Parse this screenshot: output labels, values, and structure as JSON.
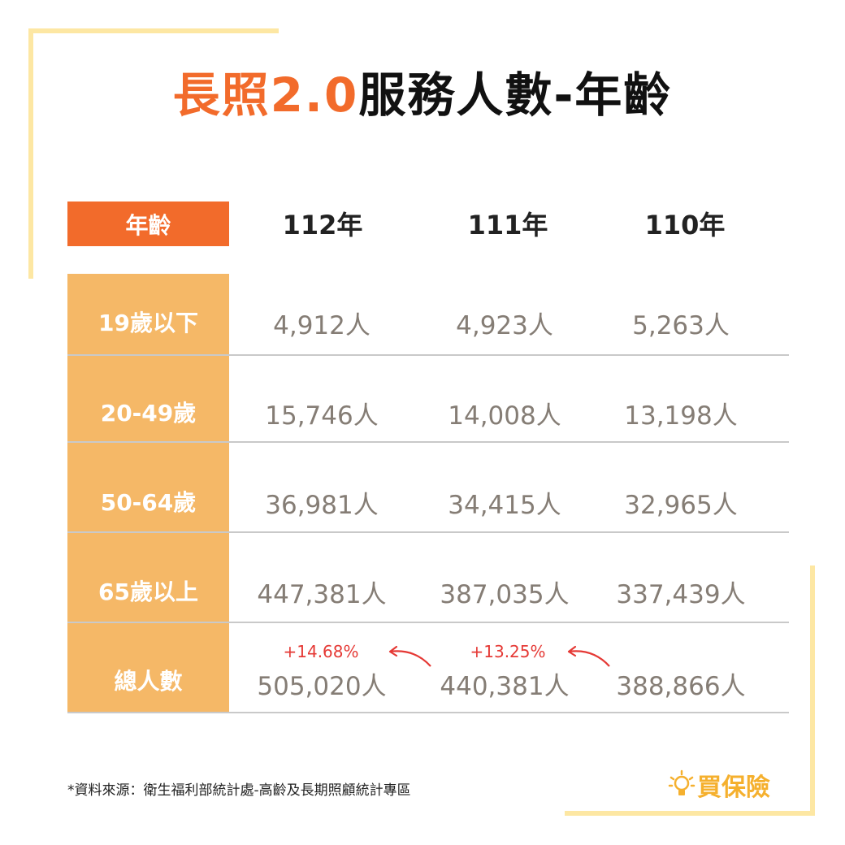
{
  "title": {
    "accent": "長照2.0",
    "main": "服務人數-年齡"
  },
  "table": {
    "age_header": "年齡",
    "years": [
      "112年",
      "111年",
      "110年"
    ],
    "rows": [
      {
        "label": "19歲以下",
        "values": [
          "4,912人",
          "4,923人",
          "5,263人"
        ]
      },
      {
        "label": "20-49歲",
        "values": [
          "15,746人",
          "14,008人",
          "13,198人"
        ]
      },
      {
        "label": "50-64歲",
        "values": [
          "36,981人",
          "34,415人",
          "32,965人"
        ]
      },
      {
        "label": "65歲以上",
        "values": [
          "447,381人",
          "387,035人",
          "337,439人"
        ]
      },
      {
        "label": "總人數",
        "values": [
          "505,020人",
          "440,381人",
          "388,866人"
        ]
      }
    ],
    "growth": [
      "+14.68%",
      "+13.25%"
    ]
  },
  "source": "*資料來源：衛生福利部統計處-高齡及長期照顧統計專區",
  "brand": {
    "name": "買保險",
    "icon": "lightbulb-icon"
  },
  "colors": {
    "accent": "#f26b2b",
    "label_bg": "#f5b867",
    "frame": "#fde7a3",
    "growth": "#e53935",
    "brand": "#f5b02e"
  }
}
